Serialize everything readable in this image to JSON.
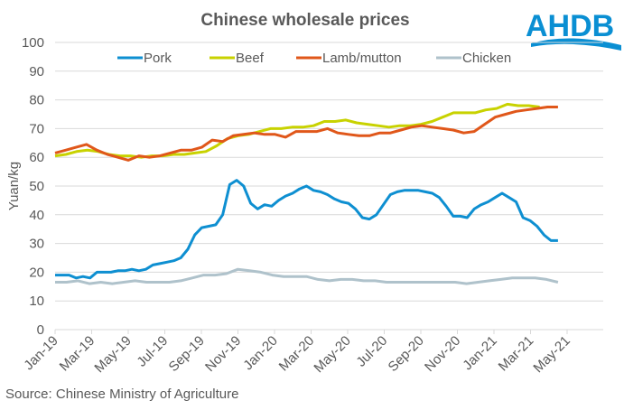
{
  "brand": {
    "logo_text": "AHDB",
    "logo_color": "#0a8fd3"
  },
  "source": "Source: Chinese Ministry of Agriculture",
  "chart_data": {
    "type": "line",
    "title": "Chinese wholesale prices",
    "xlabel": "",
    "ylabel": "Yuan/kg",
    "ylim": [
      0,
      100
    ],
    "yticks": [
      0,
      10,
      20,
      30,
      40,
      50,
      60,
      70,
      80,
      90,
      100
    ],
    "xtick_labels": [
      "Jan-19",
      "Mar-19",
      "May-19",
      "Jul-19",
      "Sep-19",
      "Nov-19",
      "Jan-20",
      "Mar-20",
      "May-20",
      "Jul-20",
      "Sep-20",
      "Nov-20",
      "Jan-21",
      "Mar-21",
      "May-21"
    ],
    "x_unit": "months since Jan-19",
    "xlim": [
      0,
      30.3
    ],
    "grid": true,
    "legend_position": "top",
    "series": [
      {
        "name": "Pork",
        "color": "#0e8fd1",
        "x_start": 0,
        "x_end": 27.5,
        "values": [
          19,
          19,
          19,
          18,
          18.5,
          18,
          20,
          20,
          20,
          20.5,
          20.5,
          21,
          20.5,
          21,
          22.5,
          23,
          23.5,
          24,
          25,
          28,
          33,
          35.5,
          36,
          36.5,
          40,
          50.5,
          52,
          50,
          44,
          42,
          43.5,
          43,
          45,
          46.5,
          47.5,
          49,
          50,
          48.5,
          48,
          47,
          45.5,
          44.5,
          44,
          42,
          39,
          38.5,
          40,
          43.5,
          47,
          48,
          48.5,
          48.5,
          48.5,
          48,
          47.5,
          46,
          43,
          39.5,
          39.5,
          39,
          42,
          43.5,
          44.5,
          46,
          47.5,
          46,
          44.5,
          39,
          38,
          36,
          33,
          31,
          31
        ]
      },
      {
        "name": "Beef",
        "color": "#c8d200",
        "x_start": 0,
        "x_end": 26.5,
        "values": [
          60.5,
          61,
          62,
          62.5,
          62,
          61,
          60.5,
          60.5,
          60,
          60.5,
          60.5,
          61,
          61,
          61.5,
          62,
          64,
          66.5,
          67.5,
          68,
          69,
          70,
          70,
          70.5,
          70.5,
          71,
          72.5,
          72.5,
          73,
          72,
          71.5,
          71,
          70.5,
          71,
          71,
          71.5,
          72.5,
          74,
          75.5,
          75.5,
          75.5,
          76.5,
          77,
          78.5,
          78,
          78,
          77.5
        ]
      },
      {
        "name": "Lamb/mutton",
        "color": "#e0571a",
        "x_start": 0,
        "x_end": 27.5,
        "values": [
          61.5,
          62.5,
          63.5,
          64.5,
          62.5,
          61,
          60,
          59,
          60.5,
          60,
          60.5,
          61.5,
          62.5,
          62.5,
          63.5,
          66,
          65.5,
          67.5,
          68,
          68.5,
          68,
          68,
          67,
          69,
          69,
          69,
          70,
          68.5,
          68,
          67.5,
          67.5,
          68.5,
          68.5,
          69.5,
          70.5,
          71,
          70.5,
          70,
          69.5,
          68.5,
          69,
          71.5,
          74,
          75,
          76,
          76.5,
          77,
          77.5,
          77.5
        ]
      },
      {
        "name": "Chicken",
        "color": "#afc2cb",
        "x_start": 0,
        "x_end": 27.5,
        "values": [
          16.5,
          16.5,
          17,
          16,
          16.5,
          16,
          16.5,
          17,
          16.5,
          16.5,
          16.5,
          17,
          18,
          19,
          19,
          19.5,
          21,
          20.5,
          20,
          19,
          18.5,
          18.5,
          18.5,
          17.5,
          17,
          17.5,
          17.5,
          17,
          17,
          16.5,
          16.5,
          16.5,
          16.5,
          16.5,
          16.5,
          16.5,
          16,
          16.5,
          17,
          17.5,
          18,
          18,
          18,
          17.5,
          16.5
        ]
      }
    ]
  }
}
